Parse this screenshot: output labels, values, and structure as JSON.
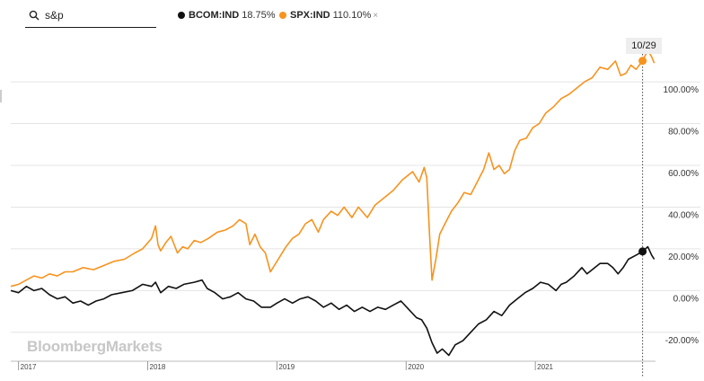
{
  "search": {
    "value": "s&p",
    "icon": "search-icon"
  },
  "legend": [
    {
      "symbol": "BCOM:IND",
      "value": "18.75%",
      "color": "#111111"
    },
    {
      "symbol": "SPX:IND",
      "value": "110.10%",
      "color": "#f7931e",
      "close": "×"
    }
  ],
  "crosshair_label": "10/29",
  "brand": "BloombergMarkets",
  "chart_data": {
    "type": "line",
    "ylim": [
      -33,
      122
    ],
    "yticks": [
      {
        "value": 100,
        "label": "100.00%"
      },
      {
        "value": 80,
        "label": "80.00%"
      },
      {
        "value": 60,
        "label": "60.00%"
      },
      {
        "value": 40,
        "label": "40.00%"
      },
      {
        "value": 20,
        "label": "20.00%"
      },
      {
        "value": 0,
        "label": "0.00%"
      },
      {
        "value": -20,
        "label": "-20.00%"
      }
    ],
    "xlim": [
      2016.94,
      2021.93
    ],
    "xticks": [
      {
        "value": 2017.0,
        "label": "2017"
      },
      {
        "value": 2018.0,
        "label": "2018"
      },
      {
        "value": 2019.0,
        "label": "2019"
      },
      {
        "value": 2020.0,
        "label": "2020"
      },
      {
        "value": 2021.0,
        "label": "2021"
      }
    ],
    "crosshair_x": 2021.83,
    "series": [
      {
        "name": "SPX:IND",
        "color": "#f7931e",
        "marker_value": 110.1,
        "points": [
          [
            2016.94,
            2
          ],
          [
            2017.0,
            3
          ],
          [
            2017.06,
            5
          ],
          [
            2017.12,
            7
          ],
          [
            2017.18,
            6
          ],
          [
            2017.24,
            8
          ],
          [
            2017.3,
            7
          ],
          [
            2017.36,
            9
          ],
          [
            2017.42,
            9
          ],
          [
            2017.5,
            11
          ],
          [
            2017.58,
            10
          ],
          [
            2017.66,
            12
          ],
          [
            2017.74,
            14
          ],
          [
            2017.82,
            15
          ],
          [
            2017.9,
            18
          ],
          [
            2017.96,
            20
          ],
          [
            2018.03,
            25
          ],
          [
            2018.06,
            31
          ],
          [
            2018.08,
            22
          ],
          [
            2018.1,
            19
          ],
          [
            2018.14,
            23
          ],
          [
            2018.18,
            26
          ],
          [
            2018.23,
            18
          ],
          [
            2018.27,
            21
          ],
          [
            2018.31,
            20
          ],
          [
            2018.36,
            24
          ],
          [
            2018.41,
            23
          ],
          [
            2018.47,
            25
          ],
          [
            2018.54,
            28
          ],
          [
            2018.6,
            29
          ],
          [
            2018.66,
            31
          ],
          [
            2018.71,
            34
          ],
          [
            2018.76,
            32
          ],
          [
            2018.79,
            22
          ],
          [
            2018.83,
            27
          ],
          [
            2018.87,
            21
          ],
          [
            2018.91,
            18
          ],
          [
            2018.95,
            9
          ],
          [
            2018.98,
            12
          ],
          [
            2019.03,
            17
          ],
          [
            2019.07,
            21
          ],
          [
            2019.12,
            25
          ],
          [
            2019.17,
            27
          ],
          [
            2019.22,
            32
          ],
          [
            2019.27,
            34
          ],
          [
            2019.32,
            28
          ],
          [
            2019.36,
            34
          ],
          [
            2019.42,
            38
          ],
          [
            2019.47,
            36
          ],
          [
            2019.52,
            40
          ],
          [
            2019.58,
            35
          ],
          [
            2019.63,
            40
          ],
          [
            2019.7,
            35
          ],
          [
            2019.76,
            41
          ],
          [
            2019.82,
            44
          ],
          [
            2019.9,
            48
          ],
          [
            2019.97,
            53
          ],
          [
            2020.05,
            57
          ],
          [
            2020.1,
            52
          ],
          [
            2020.14,
            59
          ],
          [
            2020.16,
            54
          ],
          [
            2020.18,
            28
          ],
          [
            2020.2,
            5
          ],
          [
            2020.23,
            15
          ],
          [
            2020.26,
            27
          ],
          [
            2020.3,
            32
          ],
          [
            2020.35,
            38
          ],
          [
            2020.4,
            42
          ],
          [
            2020.45,
            47
          ],
          [
            2020.5,
            46
          ],
          [
            2020.55,
            52
          ],
          [
            2020.6,
            58
          ],
          [
            2020.64,
            66
          ],
          [
            2020.68,
            58
          ],
          [
            2020.72,
            60
          ],
          [
            2020.76,
            56
          ],
          [
            2020.8,
            58
          ],
          [
            2020.84,
            67
          ],
          [
            2020.88,
            72
          ],
          [
            2020.93,
            73
          ],
          [
            2020.98,
            78
          ],
          [
            2021.03,
            80
          ],
          [
            2021.08,
            85
          ],
          [
            2021.14,
            88
          ],
          [
            2021.2,
            92
          ],
          [
            2021.26,
            94
          ],
          [
            2021.32,
            97
          ],
          [
            2021.38,
            100
          ],
          [
            2021.44,
            102
          ],
          [
            2021.5,
            107
          ],
          [
            2021.56,
            106
          ],
          [
            2021.62,
            110
          ],
          [
            2021.66,
            103
          ],
          [
            2021.7,
            104
          ],
          [
            2021.74,
            108
          ],
          [
            2021.78,
            106
          ],
          [
            2021.83,
            110.1
          ],
          [
            2021.87,
            115
          ],
          [
            2021.9,
            112
          ],
          [
            2021.92,
            109
          ]
        ]
      },
      {
        "name": "BCOM:IND",
        "color": "#111111",
        "marker_value": 18.75,
        "points": [
          [
            2016.94,
            0
          ],
          [
            2017.0,
            -1
          ],
          [
            2017.06,
            2
          ],
          [
            2017.12,
            0
          ],
          [
            2017.18,
            1
          ],
          [
            2017.24,
            -2
          ],
          [
            2017.3,
            -4
          ],
          [
            2017.36,
            -3
          ],
          [
            2017.42,
            -6
          ],
          [
            2017.48,
            -5
          ],
          [
            2017.54,
            -7
          ],
          [
            2017.6,
            -5
          ],
          [
            2017.66,
            -4
          ],
          [
            2017.72,
            -2
          ],
          [
            2017.8,
            -1
          ],
          [
            2017.88,
            0
          ],
          [
            2017.96,
            3
          ],
          [
            2018.03,
            2
          ],
          [
            2018.06,
            4
          ],
          [
            2018.1,
            -1
          ],
          [
            2018.16,
            2
          ],
          [
            2018.22,
            1
          ],
          [
            2018.28,
            3
          ],
          [
            2018.36,
            4
          ],
          [
            2018.42,
            5
          ],
          [
            2018.46,
            1
          ],
          [
            2018.52,
            -1
          ],
          [
            2018.58,
            -4
          ],
          [
            2018.64,
            -3
          ],
          [
            2018.7,
            -1
          ],
          [
            2018.76,
            -4
          ],
          [
            2018.82,
            -5
          ],
          [
            2018.88,
            -8
          ],
          [
            2018.95,
            -8
          ],
          [
            2019.0,
            -6
          ],
          [
            2019.06,
            -4
          ],
          [
            2019.12,
            -6
          ],
          [
            2019.18,
            -4
          ],
          [
            2019.24,
            -3
          ],
          [
            2019.3,
            -5
          ],
          [
            2019.36,
            -8
          ],
          [
            2019.42,
            -6
          ],
          [
            2019.48,
            -9
          ],
          [
            2019.54,
            -7
          ],
          [
            2019.6,
            -10
          ],
          [
            2019.66,
            -8
          ],
          [
            2019.72,
            -10
          ],
          [
            2019.78,
            -8
          ],
          [
            2019.84,
            -9
          ],
          [
            2019.9,
            -7
          ],
          [
            2019.96,
            -5
          ],
          [
            2020.02,
            -9
          ],
          [
            2020.08,
            -13
          ],
          [
            2020.12,
            -14
          ],
          [
            2020.16,
            -18
          ],
          [
            2020.2,
            -25
          ],
          [
            2020.24,
            -30
          ],
          [
            2020.28,
            -28
          ],
          [
            2020.33,
            -31
          ],
          [
            2020.38,
            -26
          ],
          [
            2020.44,
            -24
          ],
          [
            2020.5,
            -20
          ],
          [
            2020.56,
            -16
          ],
          [
            2020.62,
            -14
          ],
          [
            2020.68,
            -10
          ],
          [
            2020.74,
            -12
          ],
          [
            2020.8,
            -7
          ],
          [
            2020.86,
            -4
          ],
          [
            2020.92,
            -1
          ],
          [
            2020.98,
            1
          ],
          [
            2021.04,
            4
          ],
          [
            2021.1,
            3
          ],
          [
            2021.16,
            0
          ],
          [
            2021.2,
            3
          ],
          [
            2021.24,
            4
          ],
          [
            2021.3,
            7
          ],
          [
            2021.36,
            11
          ],
          [
            2021.4,
            8
          ],
          [
            2021.44,
            10
          ],
          [
            2021.5,
            13
          ],
          [
            2021.56,
            13
          ],
          [
            2021.6,
            11
          ],
          [
            2021.64,
            8
          ],
          [
            2021.68,
            11
          ],
          [
            2021.72,
            15
          ],
          [
            2021.78,
            17
          ],
          [
            2021.83,
            18.75
          ],
          [
            2021.87,
            21
          ],
          [
            2021.9,
            17
          ],
          [
            2021.92,
            15
          ]
        ]
      }
    ]
  }
}
